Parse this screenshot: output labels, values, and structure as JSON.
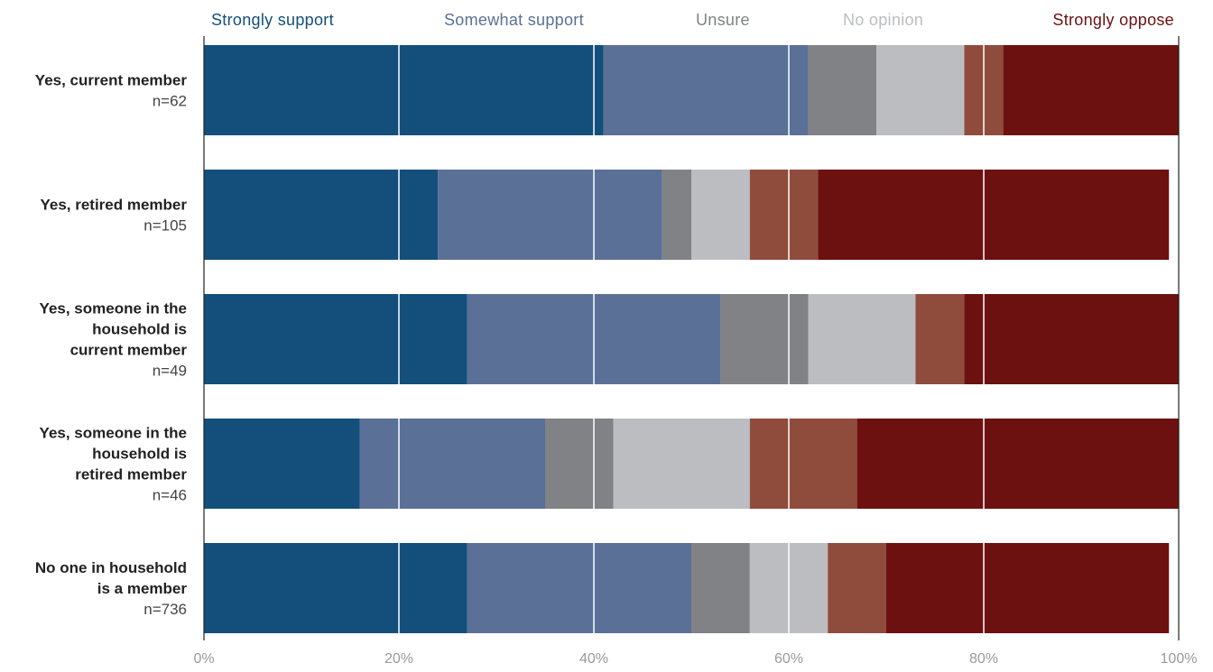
{
  "chart_data": {
    "type": "bar",
    "orientation": "horizontal",
    "stacked": true,
    "legend_position": "top",
    "categories": [
      {
        "label": [
          "Yes, current member"
        ],
        "n": "n=62"
      },
      {
        "label": [
          "Yes, retired member"
        ],
        "n": "n=105"
      },
      {
        "label": [
          "Yes, someone in the",
          "household is",
          "current member"
        ],
        "n": "n=49"
      },
      {
        "label": [
          "Yes, someone in the",
          "household is",
          "retired member"
        ],
        "n": "n=46"
      },
      {
        "label": [
          "No one in household",
          "is a member"
        ],
        "n": "n=736"
      }
    ],
    "series": [
      {
        "name": "Strongly support",
        "color": "#134f7a",
        "legend_color": "#134f7a",
        "values": [
          41,
          24,
          27,
          16,
          27
        ]
      },
      {
        "name": "Somewhat support",
        "color": "#5b7096",
        "legend_color": "#5b7096",
        "values": [
          21,
          23,
          26,
          19,
          23
        ]
      },
      {
        "name": "Unsure",
        "color": "#808286",
        "legend_color": "#808286",
        "values": [
          7,
          3,
          9,
          7,
          6
        ]
      },
      {
        "name": "No opinion",
        "color": "#bcbdc1",
        "legend_color": "#bcbdc1",
        "values": [
          9,
          6,
          11,
          14,
          8
        ]
      },
      {
        "name": "",
        "color": "#8f4c3d",
        "values": [
          4,
          7,
          5,
          11,
          6
        ]
      },
      {
        "name": "Strongly oppose",
        "color": "#6c1010",
        "legend_color": "#6c1010",
        "values": [
          18,
          36,
          22,
          33,
          29
        ]
      }
    ],
    "xaxis": {
      "ticks": [
        "0%",
        "20%",
        "40%",
        "60%",
        "80%",
        "100%"
      ],
      "range": [
        0,
        100
      ]
    },
    "grid": true
  }
}
